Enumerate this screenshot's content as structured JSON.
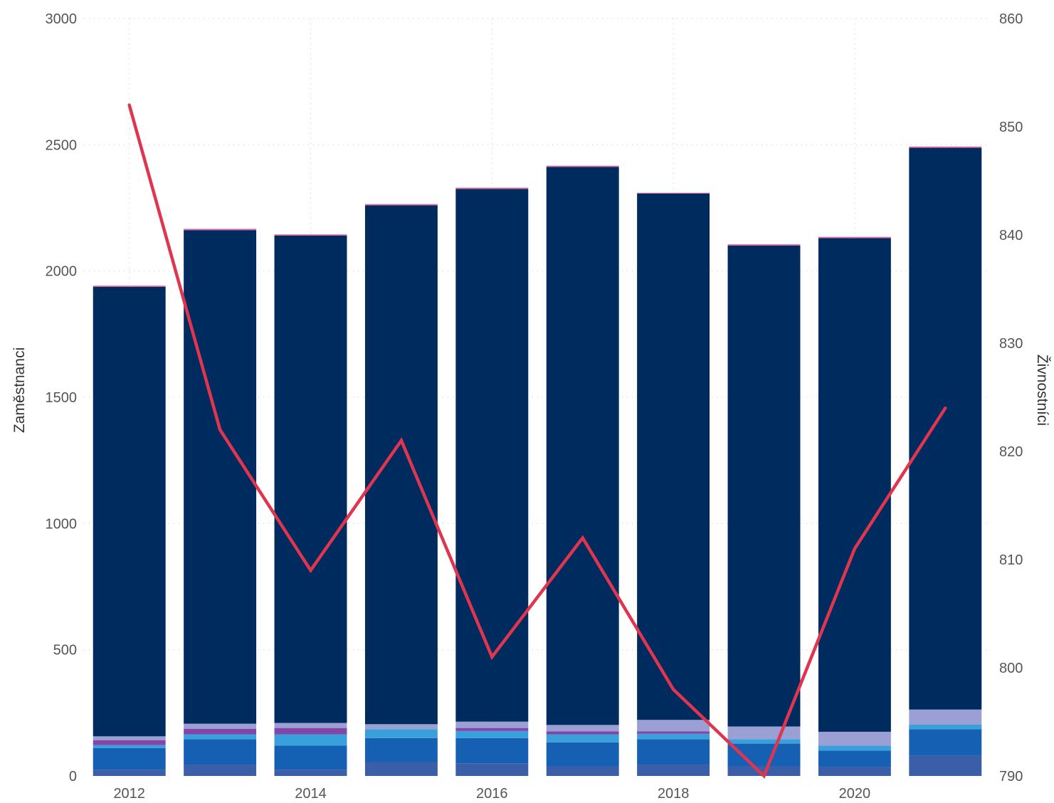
{
  "chart_data": {
    "type": "bar",
    "stacked": true,
    "combo": "stacked-bar + line (secondary axis)",
    "categories": [
      "2012",
      "2013",
      "2014",
      "2015",
      "2016",
      "2017",
      "2018",
      "2019",
      "2020",
      "2021"
    ],
    "x_tick_labels": [
      "2012",
      "2014",
      "2016",
      "2018",
      "2020"
    ],
    "ylabel": "Zaměstnanci",
    "ylabel_right": "Živnostníci",
    "ylim": [
      0,
      3000
    ],
    "ylim_right": [
      790,
      860
    ],
    "yticks": [
      "0",
      "500",
      "1000",
      "1500",
      "2000",
      "2500",
      "3000"
    ],
    "yticks_right": [
      "790",
      "800",
      "810",
      "820",
      "830",
      "840",
      "850",
      "860"
    ],
    "grid": true,
    "legend": "none",
    "series": [
      {
        "color": "#3b5ea8",
        "values": [
          25,
          45,
          25,
          55,
          50,
          38,
          45,
          38,
          35,
          80
        ]
      },
      {
        "color": "#1560b3",
        "values": [
          85,
          100,
          95,
          95,
          100,
          95,
          100,
          90,
          65,
          105
        ]
      },
      {
        "color": "#3aa0dc",
        "values": [
          12,
          20,
          45,
          35,
          28,
          32,
          22,
          18,
          20,
          18
        ]
      },
      {
        "color": "#8246a6",
        "values": [
          20,
          22,
          25,
          0,
          12,
          12,
          10,
          0,
          0,
          0
        ]
      },
      {
        "color": "#9aa0d4",
        "values": [
          15,
          20,
          20,
          20,
          25,
          25,
          45,
          50,
          55,
          60
        ]
      },
      {
        "color": "#002b5e",
        "values": [
          1780,
          1955,
          1930,
          2055,
          2110,
          2210,
          2085,
          1905,
          1955,
          2225
        ]
      },
      {
        "color": "#e36aa1",
        "values": [
          5,
          5,
          5,
          5,
          5,
          5,
          3,
          5,
          5,
          5
        ]
      }
    ],
    "line_series": {
      "name": "Živnostníci",
      "color": "#e0354f",
      "values": [
        852,
        822,
        809,
        821,
        801,
        812,
        798,
        790,
        811,
        824
      ]
    }
  }
}
